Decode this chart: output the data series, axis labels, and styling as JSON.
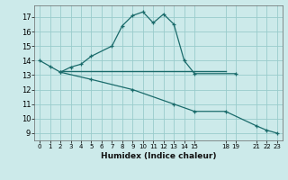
{
  "xlabel": "Humidex (Indice chaleur)",
  "bg_color": "#cceaea",
  "grid_color": "#99cccc",
  "line_color": "#1a6b6b",
  "ylim": [
    8.5,
    17.8
  ],
  "xlim": [
    -0.5,
    23.5
  ],
  "yticks": [
    9,
    10,
    11,
    12,
    13,
    14,
    15,
    16,
    17
  ],
  "xtick_positions": [
    0,
    1,
    2,
    3,
    4,
    5,
    6,
    7,
    8,
    9,
    10,
    11,
    12,
    13,
    14,
    15,
    18,
    19,
    21,
    22,
    23
  ],
  "xtick_labels": [
    "0",
    "1",
    "2",
    "3",
    "4",
    "5",
    "6",
    "7",
    "8",
    "9",
    "10",
    "11",
    "12",
    "13",
    "14",
    "15",
    "18",
    "19",
    "21",
    "22",
    "23"
  ],
  "curve1_x": [
    0,
    1,
    2,
    3,
    4,
    5,
    7,
    8,
    9,
    10,
    11,
    12,
    13,
    14,
    15,
    19
  ],
  "curve1_y": [
    14.0,
    13.6,
    13.2,
    13.55,
    13.75,
    14.3,
    15.0,
    16.4,
    17.1,
    17.35,
    16.6,
    17.2,
    16.5,
    14.0,
    13.1,
    13.1
  ],
  "curve2_x": [
    2,
    18
  ],
  "curve2_y": [
    13.3,
    13.3
  ],
  "curve3_x": [
    2,
    5,
    9,
    13,
    15,
    18,
    21,
    22,
    23
  ],
  "curve3_y": [
    13.2,
    12.7,
    12.0,
    11.0,
    10.5,
    10.5,
    9.5,
    9.2,
    9.0
  ]
}
